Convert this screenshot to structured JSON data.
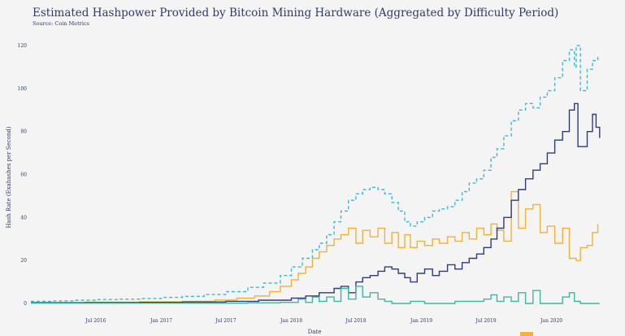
{
  "chart_data": {
    "type": "line",
    "title": "Estimated Hashpower Provided by Bitcoin Mining Hardware  (Aggregated by Difficulty Period)",
    "subtitle": "Source: Coin Metrics",
    "xlabel": "Date",
    "ylabel": "Hash Rate (Exahashes per Second)",
    "ylim": [
      0,
      120
    ],
    "yticks": [
      0,
      20,
      40,
      60,
      80,
      100,
      120
    ],
    "xlim": [
      "2016-01-01",
      "2020-05-20"
    ],
    "xticks": [
      {
        "date": "2016-07-01",
        "label": "Jul 2016"
      },
      {
        "date": "2017-01-01",
        "label": "Jan 2017"
      },
      {
        "date": "2017-07-01",
        "label": "Jul 2017"
      },
      {
        "date": "2018-01-01",
        "label": "Jan 2018"
      },
      {
        "date": "2018-07-01",
        "label": "Jul 2018"
      },
      {
        "date": "2019-01-01",
        "label": "Jan 2019"
      },
      {
        "date": "2019-07-01",
        "label": "Jul 2019"
      },
      {
        "date": "2020-01-01",
        "label": "Jan 2020"
      }
    ],
    "grid": false,
    "step": true,
    "series": [
      {
        "color": "#41b6d4",
        "dash": "4,3",
        "points": [
          [
            "2016-01-01",
            1.0
          ],
          [
            "2016-03-01",
            1.2
          ],
          [
            "2016-05-01",
            1.5
          ],
          [
            "2016-07-01",
            1.8
          ],
          [
            "2016-09-01",
            2.0
          ],
          [
            "2016-11-01",
            2.3
          ],
          [
            "2017-01-01",
            2.8
          ],
          [
            "2017-03-01",
            3.3
          ],
          [
            "2017-05-01",
            4.2
          ],
          [
            "2017-07-01",
            5.5
          ],
          [
            "2017-09-01",
            7.5
          ],
          [
            "2017-10-15",
            9.5
          ],
          [
            "2017-12-01",
            13
          ],
          [
            "2018-01-01",
            17
          ],
          [
            "2018-02-01",
            21
          ],
          [
            "2018-03-01",
            25
          ],
          [
            "2018-03-20",
            28
          ],
          [
            "2018-04-10",
            32
          ],
          [
            "2018-05-01",
            38
          ],
          [
            "2018-05-20",
            43
          ],
          [
            "2018-06-10",
            48
          ],
          [
            "2018-07-01",
            51
          ],
          [
            "2018-07-20",
            53
          ],
          [
            "2018-08-10",
            54
          ],
          [
            "2018-09-01",
            53
          ],
          [
            "2018-09-20",
            51
          ],
          [
            "2018-10-10",
            47
          ],
          [
            "2018-10-28",
            43
          ],
          [
            "2018-11-15",
            38
          ],
          [
            "2018-12-01",
            36
          ],
          [
            "2018-12-20",
            38
          ],
          [
            "2019-01-10",
            40
          ],
          [
            "2019-02-01",
            43
          ],
          [
            "2019-02-20",
            44
          ],
          [
            "2019-03-15",
            45
          ],
          [
            "2019-04-05",
            48
          ],
          [
            "2019-04-25",
            52
          ],
          [
            "2019-05-15",
            56
          ],
          [
            "2019-06-05",
            58
          ],
          [
            "2019-06-25",
            62
          ],
          [
            "2019-07-15",
            68
          ],
          [
            "2019-08-01",
            72
          ],
          [
            "2019-08-20",
            78
          ],
          [
            "2019-09-10",
            85
          ],
          [
            "2019-09-30",
            90
          ],
          [
            "2019-10-20",
            93
          ],
          [
            "2019-11-10",
            91
          ],
          [
            "2019-11-30",
            96
          ],
          [
            "2019-12-20",
            99
          ],
          [
            "2020-01-10",
            105
          ],
          [
            "2020-02-01",
            113
          ],
          [
            "2020-02-20",
            118
          ],
          [
            "2020-03-05",
            110
          ],
          [
            "2020-03-10",
            120
          ],
          [
            "2020-03-22",
            99
          ],
          [
            "2020-04-10",
            109
          ],
          [
            "2020-04-25",
            113
          ],
          [
            "2020-05-10",
            115
          ]
        ]
      },
      {
        "color": "#f0b23a",
        "dash": "",
        "points": [
          [
            "2016-01-01",
            0.5
          ],
          [
            "2016-06-01",
            0.6
          ],
          [
            "2016-11-01",
            0.8
          ],
          [
            "2017-03-01",
            1.0
          ],
          [
            "2017-06-01",
            1.6
          ],
          [
            "2017-08-01",
            2.5
          ],
          [
            "2017-09-20",
            3.5
          ],
          [
            "2017-11-01",
            5.5
          ],
          [
            "2017-12-01",
            8
          ],
          [
            "2018-01-01",
            11
          ],
          [
            "2018-01-20",
            14
          ],
          [
            "2018-02-10",
            17
          ],
          [
            "2018-03-01",
            21
          ],
          [
            "2018-03-20",
            24
          ],
          [
            "2018-04-10",
            27
          ],
          [
            "2018-05-01",
            30
          ],
          [
            "2018-05-20",
            32
          ],
          [
            "2018-06-10",
            35
          ],
          [
            "2018-07-01",
            28
          ],
          [
            "2018-07-20",
            34
          ],
          [
            "2018-08-10",
            31
          ],
          [
            "2018-09-01",
            35
          ],
          [
            "2018-09-20",
            28
          ],
          [
            "2018-10-10",
            33
          ],
          [
            "2018-10-28",
            26
          ],
          [
            "2018-11-15",
            32
          ],
          [
            "2018-12-01",
            26
          ],
          [
            "2018-12-20",
            29
          ],
          [
            "2019-01-10",
            27
          ],
          [
            "2019-02-01",
            30
          ],
          [
            "2019-02-20",
            28
          ],
          [
            "2019-03-15",
            31
          ],
          [
            "2019-04-05",
            29
          ],
          [
            "2019-04-25",
            33
          ],
          [
            "2019-05-15",
            30
          ],
          [
            "2019-06-05",
            35
          ],
          [
            "2019-06-25",
            32
          ],
          [
            "2019-07-15",
            37
          ],
          [
            "2019-08-01",
            34
          ],
          [
            "2019-08-20",
            29
          ],
          [
            "2019-09-10",
            52
          ],
          [
            "2019-09-30",
            35
          ],
          [
            "2019-10-20",
            44
          ],
          [
            "2019-11-10",
            46
          ],
          [
            "2019-11-30",
            33
          ],
          [
            "2019-12-20",
            36
          ],
          [
            "2020-01-10",
            28
          ],
          [
            "2020-02-01",
            35
          ],
          [
            "2020-02-20",
            21
          ],
          [
            "2020-03-10",
            20
          ],
          [
            "2020-03-22",
            26
          ],
          [
            "2020-04-10",
            27
          ],
          [
            "2020-04-25",
            33
          ],
          [
            "2020-05-10",
            37
          ]
        ]
      },
      {
        "color": "#2e3c7e",
        "dash": "",
        "points": [
          [
            "2016-01-01",
            0.3
          ],
          [
            "2016-06-01",
            0.4
          ],
          [
            "2016-11-01",
            0.5
          ],
          [
            "2017-03-01",
            0.7
          ],
          [
            "2017-07-01",
            1.0
          ],
          [
            "2017-10-01",
            1.5
          ],
          [
            "2018-01-01",
            2.5
          ],
          [
            "2018-02-10",
            3.5
          ],
          [
            "2018-03-20",
            5
          ],
          [
            "2018-05-01",
            7
          ],
          [
            "2018-05-20",
            8
          ],
          [
            "2018-06-10",
            5
          ],
          [
            "2018-07-01",
            10
          ],
          [
            "2018-07-20",
            12
          ],
          [
            "2018-08-10",
            13
          ],
          [
            "2018-09-01",
            15
          ],
          [
            "2018-09-20",
            17
          ],
          [
            "2018-10-10",
            16
          ],
          [
            "2018-10-28",
            14
          ],
          [
            "2018-11-15",
            12
          ],
          [
            "2018-12-01",
            10
          ],
          [
            "2018-12-20",
            14
          ],
          [
            "2019-01-10",
            16
          ],
          [
            "2019-02-01",
            13
          ],
          [
            "2019-02-20",
            15
          ],
          [
            "2019-03-15",
            18
          ],
          [
            "2019-04-05",
            16
          ],
          [
            "2019-04-25",
            19
          ],
          [
            "2019-05-15",
            21
          ],
          [
            "2019-06-05",
            23
          ],
          [
            "2019-06-25",
            26
          ],
          [
            "2019-07-15",
            30
          ],
          [
            "2019-08-01",
            35
          ],
          [
            "2019-08-20",
            40
          ],
          [
            "2019-09-10",
            48
          ],
          [
            "2019-09-30",
            53
          ],
          [
            "2019-10-20",
            58
          ],
          [
            "2019-11-10",
            62
          ],
          [
            "2019-11-30",
            65
          ],
          [
            "2019-12-20",
            70
          ],
          [
            "2020-01-10",
            76
          ],
          [
            "2020-02-01",
            80
          ],
          [
            "2020-02-20",
            90
          ],
          [
            "2020-03-05",
            93
          ],
          [
            "2020-03-15",
            73
          ],
          [
            "2020-04-10",
            80
          ],
          [
            "2020-04-25",
            88
          ],
          [
            "2020-05-05",
            82
          ],
          [
            "2020-05-15",
            77
          ]
        ]
      },
      {
        "color": "#3fb6a0",
        "dash": "",
        "points": [
          [
            "2016-01-01",
            0.1
          ],
          [
            "2017-09-01",
            0.3
          ],
          [
            "2017-12-01",
            0.5
          ],
          [
            "2018-01-20",
            2
          ],
          [
            "2018-02-10",
            0.5
          ],
          [
            "2018-03-01",
            3
          ],
          [
            "2018-03-20",
            1
          ],
          [
            "2018-04-10",
            3
          ],
          [
            "2018-05-01",
            1
          ],
          [
            "2018-05-20",
            7
          ],
          [
            "2018-06-10",
            2
          ],
          [
            "2018-07-01",
            8
          ],
          [
            "2018-07-20",
            3
          ],
          [
            "2018-08-10",
            5
          ],
          [
            "2018-09-01",
            2
          ],
          [
            "2018-09-20",
            1
          ],
          [
            "2018-10-10",
            0
          ],
          [
            "2018-12-01",
            1
          ],
          [
            "2019-01-10",
            0
          ],
          [
            "2019-04-05",
            1
          ],
          [
            "2019-06-25",
            2
          ],
          [
            "2019-07-15",
            4
          ],
          [
            "2019-08-01",
            1
          ],
          [
            "2019-08-20",
            3
          ],
          [
            "2019-09-10",
            1
          ],
          [
            "2019-09-30",
            5
          ],
          [
            "2019-10-20",
            0
          ],
          [
            "2019-11-10",
            6
          ],
          [
            "2019-11-30",
            0
          ],
          [
            "2020-02-01",
            3
          ],
          [
            "2020-02-20",
            5
          ],
          [
            "2020-03-05",
            1
          ],
          [
            "2020-03-22",
            0
          ],
          [
            "2020-05-15",
            0
          ]
        ]
      }
    ]
  }
}
